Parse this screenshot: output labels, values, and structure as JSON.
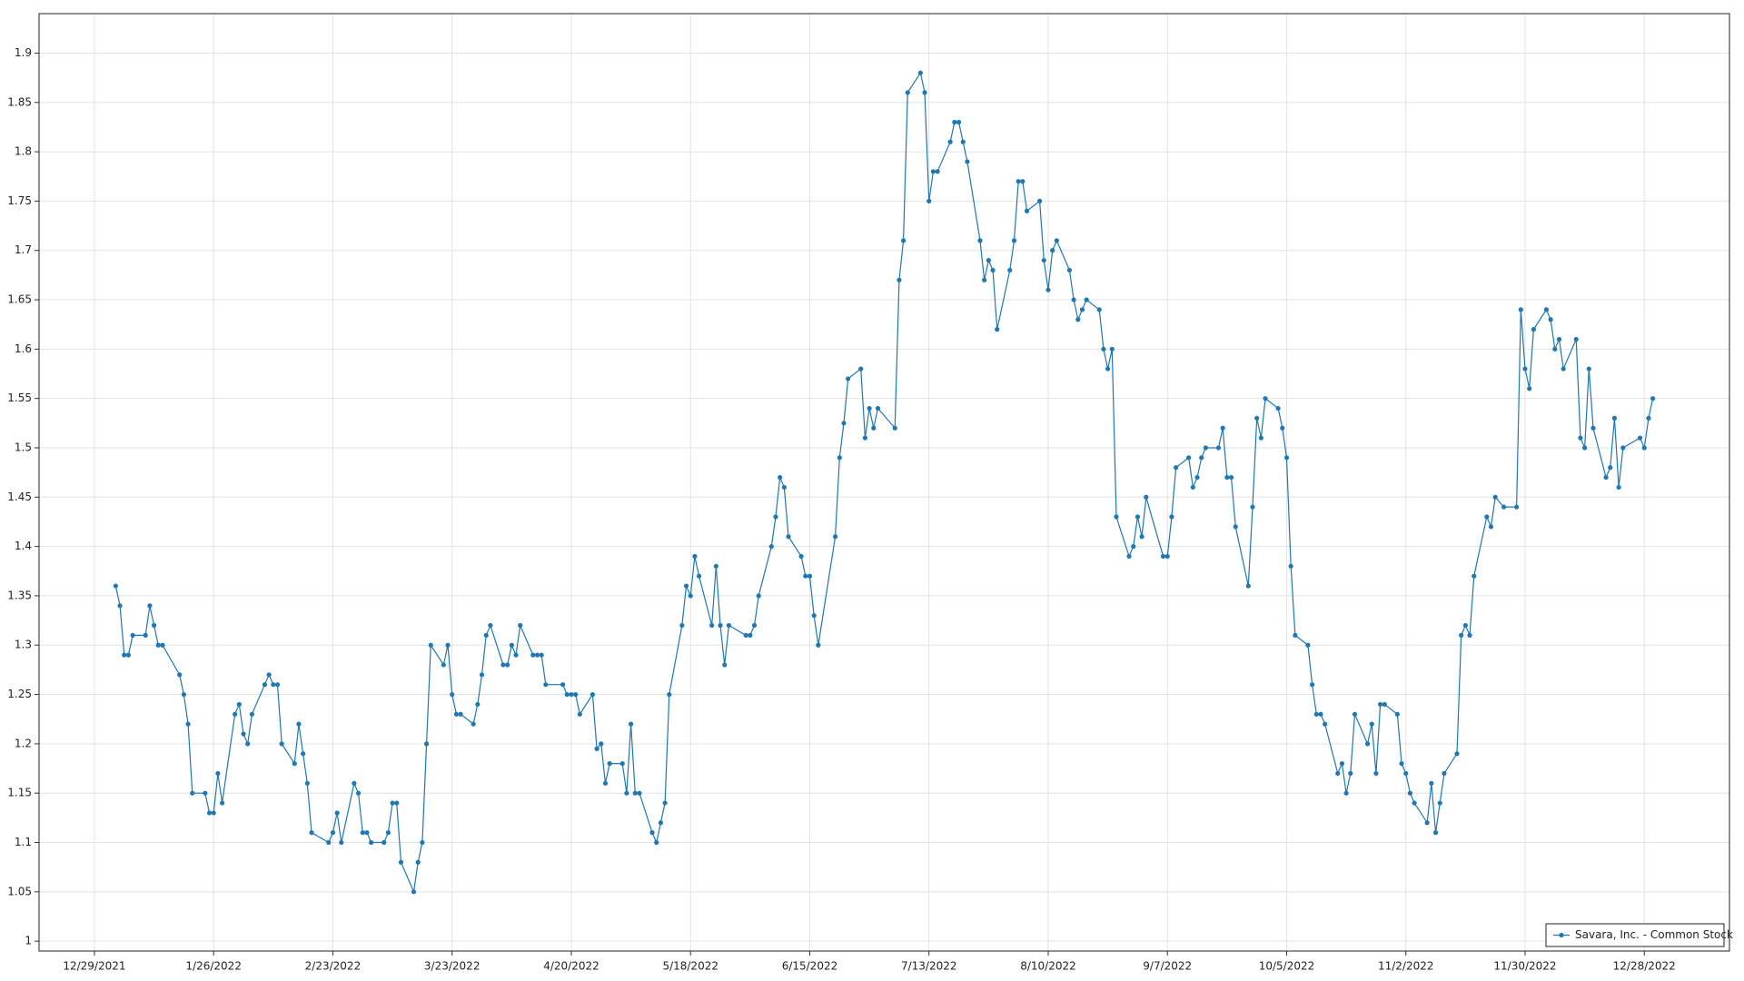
{
  "chart_data": {
    "type": "line",
    "x": [
      "2022-01-03",
      "2022-01-04",
      "2022-01-05",
      "2022-01-06",
      "2022-01-07",
      "2022-01-10",
      "2022-01-11",
      "2022-01-12",
      "2022-01-13",
      "2022-01-14",
      "2022-01-18",
      "2022-01-19",
      "2022-01-20",
      "2022-01-21",
      "2022-01-24",
      "2022-01-25",
      "2022-01-26",
      "2022-01-27",
      "2022-01-28",
      "2022-01-31",
      "2022-02-01",
      "2022-02-02",
      "2022-02-03",
      "2022-02-04",
      "2022-02-07",
      "2022-02-08",
      "2022-02-09",
      "2022-02-10",
      "2022-02-11",
      "2022-02-14",
      "2022-02-15",
      "2022-02-16",
      "2022-02-17",
      "2022-02-18",
      "2022-02-22",
      "2022-02-23",
      "2022-02-24",
      "2022-02-25",
      "2022-02-28",
      "2022-03-01",
      "2022-03-02",
      "2022-03-03",
      "2022-03-04",
      "2022-03-07",
      "2022-03-08",
      "2022-03-09",
      "2022-03-10",
      "2022-03-11",
      "2022-03-14",
      "2022-03-15",
      "2022-03-16",
      "2022-03-17",
      "2022-03-18",
      "2022-03-21",
      "2022-03-22",
      "2022-03-23",
      "2022-03-24",
      "2022-03-25",
      "2022-03-28",
      "2022-03-29",
      "2022-03-30",
      "2022-03-31",
      "2022-04-01",
      "2022-04-04",
      "2022-04-05",
      "2022-04-06",
      "2022-04-07",
      "2022-04-08",
      "2022-04-11",
      "2022-04-12",
      "2022-04-13",
      "2022-04-14",
      "2022-04-18",
      "2022-04-19",
      "2022-04-20",
      "2022-04-21",
      "2022-04-22",
      "2022-04-25",
      "2022-04-26",
      "2022-04-27",
      "2022-04-28",
      "2022-04-29",
      "2022-05-02",
      "2022-05-03",
      "2022-05-04",
      "2022-05-05",
      "2022-05-06",
      "2022-05-09",
      "2022-05-10",
      "2022-05-11",
      "2022-05-12",
      "2022-05-13",
      "2022-05-16",
      "2022-05-17",
      "2022-05-18",
      "2022-05-19",
      "2022-05-20",
      "2022-05-23",
      "2022-05-24",
      "2022-05-25",
      "2022-05-26",
      "2022-05-27",
      "2022-05-31",
      "2022-06-01",
      "2022-06-02",
      "2022-06-03",
      "2022-06-06",
      "2022-06-07",
      "2022-06-08",
      "2022-06-09",
      "2022-06-10",
      "2022-06-13",
      "2022-06-14",
      "2022-06-15",
      "2022-06-16",
      "2022-06-17",
      "2022-06-21",
      "2022-06-22",
      "2022-06-23",
      "2022-06-24",
      "2022-06-27",
      "2022-06-28",
      "2022-06-29",
      "2022-06-30",
      "2022-07-01",
      "2022-07-05",
      "2022-07-06",
      "2022-07-07",
      "2022-07-08",
      "2022-07-11",
      "2022-07-12",
      "2022-07-13",
      "2022-07-14",
      "2022-07-15",
      "2022-07-18",
      "2022-07-19",
      "2022-07-20",
      "2022-07-21",
      "2022-07-22",
      "2022-07-25",
      "2022-07-26",
      "2022-07-27",
      "2022-07-28",
      "2022-07-29",
      "2022-08-01",
      "2022-08-02",
      "2022-08-03",
      "2022-08-04",
      "2022-08-05",
      "2022-08-08",
      "2022-08-09",
      "2022-08-10",
      "2022-08-11",
      "2022-08-12",
      "2022-08-15",
      "2022-08-16",
      "2022-08-17",
      "2022-08-18",
      "2022-08-19",
      "2022-08-22",
      "2022-08-23",
      "2022-08-24",
      "2022-08-25",
      "2022-08-26",
      "2022-08-29",
      "2022-08-30",
      "2022-08-31",
      "2022-09-01",
      "2022-09-02",
      "2022-09-06",
      "2022-09-07",
      "2022-09-08",
      "2022-09-09",
      "2022-09-12",
      "2022-09-13",
      "2022-09-14",
      "2022-09-15",
      "2022-09-16",
      "2022-09-19",
      "2022-09-20",
      "2022-09-21",
      "2022-09-22",
      "2022-09-23",
      "2022-09-26",
      "2022-09-27",
      "2022-09-28",
      "2022-09-29",
      "2022-09-30",
      "2022-10-03",
      "2022-10-04",
      "2022-10-05",
      "2022-10-06",
      "2022-10-07",
      "2022-10-10",
      "2022-10-11",
      "2022-10-12",
      "2022-10-13",
      "2022-10-14",
      "2022-10-17",
      "2022-10-18",
      "2022-10-19",
      "2022-10-20",
      "2022-10-21",
      "2022-10-24",
      "2022-10-25",
      "2022-10-26",
      "2022-10-27",
      "2022-10-28",
      "2022-10-31",
      "2022-11-01",
      "2022-11-02",
      "2022-11-03",
      "2022-11-04",
      "2022-11-07",
      "2022-11-08",
      "2022-11-09",
      "2022-11-10",
      "2022-11-11",
      "2022-11-14",
      "2022-11-15",
      "2022-11-16",
      "2022-11-17",
      "2022-11-18",
      "2022-11-21",
      "2022-11-22",
      "2022-11-23",
      "2022-11-25",
      "2022-11-28",
      "2022-11-29",
      "2022-11-30",
      "2022-12-01",
      "2022-12-02",
      "2022-12-05",
      "2022-12-06",
      "2022-12-07",
      "2022-12-08",
      "2022-12-09",
      "2022-12-12",
      "2022-12-13",
      "2022-12-14",
      "2022-12-15",
      "2022-12-16",
      "2022-12-19",
      "2022-12-20",
      "2022-12-21",
      "2022-12-22",
      "2022-12-23",
      "2022-12-27",
      "2022-12-28",
      "2022-12-29",
      "2022-12-30"
    ],
    "series": [
      {
        "name": "Savara, Inc. - Common Stock",
        "color": "#1f77b4",
        "values": [
          1.36,
          1.34,
          1.29,
          1.29,
          1.31,
          1.31,
          1.34,
          1.32,
          1.3,
          1.3,
          1.27,
          1.25,
          1.22,
          1.15,
          1.15,
          1.13,
          1.13,
          1.17,
          1.14,
          1.23,
          1.24,
          1.21,
          1.2,
          1.23,
          1.26,
          1.27,
          1.26,
          1.26,
          1.2,
          1.18,
          1.22,
          1.19,
          1.16,
          1.11,
          1.1,
          1.11,
          1.13,
          1.1,
          1.16,
          1.15,
          1.11,
          1.11,
          1.1,
          1.1,
          1.11,
          1.14,
          1.14,
          1.08,
          1.05,
          1.08,
          1.1,
          1.2,
          1.3,
          1.28,
          1.3,
          1.25,
          1.23,
          1.23,
          1.22,
          1.24,
          1.27,
          1.31,
          1.32,
          1.28,
          1.28,
          1.3,
          1.29,
          1.32,
          1.29,
          1.29,
          1.29,
          1.26,
          1.26,
          1.25,
          1.25,
          1.25,
          1.23,
          1.25,
          1.195,
          1.2,
          1.16,
          1.18,
          1.18,
          1.15,
          1.22,
          1.15,
          1.15,
          1.11,
          1.1,
          1.12,
          1.14,
          1.25,
          1.32,
          1.36,
          1.35,
          1.39,
          1.37,
          1.32,
          1.38,
          1.32,
          1.28,
          1.32,
          1.31,
          1.31,
          1.32,
          1.35,
          1.4,
          1.43,
          1.47,
          1.46,
          1.41,
          1.39,
          1.37,
          1.37,
          1.33,
          1.3,
          1.41,
          1.49,
          1.525,
          1.57,
          1.58,
          1.51,
          1.54,
          1.52,
          1.54,
          1.52,
          1.67,
          1.71,
          1.86,
          1.88,
          1.86,
          1.75,
          1.78,
          1.78,
          1.81,
          1.83,
          1.83,
          1.81,
          1.79,
          1.71,
          1.67,
          1.69,
          1.68,
          1.62,
          1.68,
          1.71,
          1.77,
          1.77,
          1.74,
          1.75,
          1.69,
          1.66,
          1.7,
          1.71,
          1.68,
          1.65,
          1.63,
          1.64,
          1.65,
          1.64,
          1.6,
          1.58,
          1.6,
          1.43,
          1.39,
          1.4,
          1.43,
          1.41,
          1.45,
          1.39,
          1.39,
          1.43,
          1.48,
          1.49,
          1.46,
          1.47,
          1.49,
          1.5,
          1.5,
          1.52,
          1.47,
          1.47,
          1.42,
          1.36,
          1.44,
          1.53,
          1.51,
          1.55,
          1.54,
          1.52,
          1.49,
          1.38,
          1.31,
          1.3,
          1.26,
          1.23,
          1.23,
          1.22,
          1.17,
          1.18,
          1.15,
          1.17,
          1.23,
          1.2,
          1.22,
          1.17,
          1.24,
          1.24,
          1.23,
          1.18,
          1.17,
          1.15,
          1.14,
          1.12,
          1.16,
          1.11,
          1.14,
          1.17,
          1.19,
          1.31,
          1.32,
          1.31,
          1.37,
          1.43,
          1.42,
          1.45,
          1.44,
          1.44,
          1.64,
          1.58,
          1.56,
          1.62,
          1.64,
          1.63,
          1.6,
          1.61,
          1.58,
          1.61,
          1.51,
          1.5,
          1.58,
          1.52,
          1.47,
          1.48,
          1.53,
          1.46,
          1.5,
          1.51,
          1.5,
          1.53,
          1.55
        ]
      }
    ],
    "xlim": [
      "2021-12-16",
      "2023-01-17"
    ],
    "xticks": [
      {
        "value": "2021-12-29",
        "label": "12/29/2021"
      },
      {
        "value": "2022-01-26",
        "label": "1/26/2022"
      },
      {
        "value": "2022-02-23",
        "label": "2/23/2022"
      },
      {
        "value": "2022-03-23",
        "label": "3/23/2022"
      },
      {
        "value": "2022-04-20",
        "label": "4/20/2022"
      },
      {
        "value": "2022-05-18",
        "label": "5/18/2022"
      },
      {
        "value": "2022-06-15",
        "label": "6/15/2022"
      },
      {
        "value": "2022-07-13",
        "label": "7/13/2022"
      },
      {
        "value": "2022-08-10",
        "label": "8/10/2022"
      },
      {
        "value": "2022-09-07",
        "label": "9/7/2022"
      },
      {
        "value": "2022-10-05",
        "label": "10/5/2022"
      },
      {
        "value": "2022-11-02",
        "label": "11/2/2022"
      },
      {
        "value": "2022-11-30",
        "label": "11/30/2022"
      },
      {
        "value": "2022-12-28",
        "label": "12/28/2022"
      }
    ],
    "ylim": [
      0.99,
      1.94
    ],
    "yticks": [
      1,
      1.05,
      1.1,
      1.15,
      1.2,
      1.25,
      1.3,
      1.35,
      1.4,
      1.45,
      1.5,
      1.55,
      1.6,
      1.65,
      1.7,
      1.75,
      1.8,
      1.85,
      1.9
    ],
    "grid": true,
    "legend": "lower right"
  }
}
